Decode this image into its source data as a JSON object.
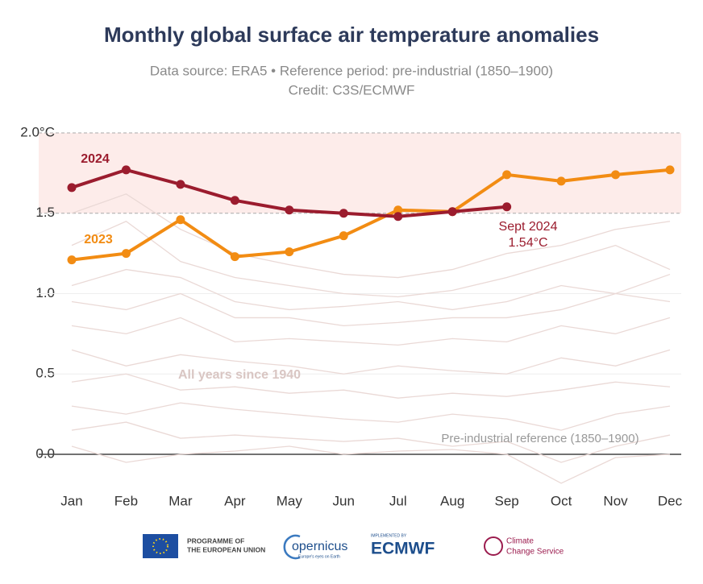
{
  "chart_data": {
    "type": "line",
    "title": "Monthly global surface air temperature anomalies",
    "subtitle": [
      "Data source: ERA5 • Reference period: pre-industrial (1850–1900)",
      "Credit: C3S/ECMWF"
    ],
    "categories": [
      "Jan",
      "Feb",
      "Mar",
      "Apr",
      "May",
      "Jun",
      "Jul",
      "Aug",
      "Sep",
      "Oct",
      "Nov",
      "Dec"
    ],
    "series": [
      {
        "name": "2024",
        "color": "#9b1c2e",
        "values": [
          1.66,
          1.77,
          1.68,
          1.58,
          1.52,
          1.5,
          1.48,
          1.51,
          1.54,
          null,
          null,
          null
        ]
      },
      {
        "name": "2023",
        "color": "#f28c13",
        "values": [
          1.21,
          1.25,
          1.46,
          1.23,
          1.26,
          1.36,
          1.52,
          1.51,
          1.74,
          1.7,
          1.74,
          1.77
        ]
      }
    ],
    "background_lines": {
      "label": "All years since 1940",
      "color": "#ead9d6",
      "values": [
        [
          1.3,
          1.45,
          1.2,
          1.1,
          1.05,
          1.0,
          0.98,
          1.02,
          1.1,
          1.2,
          1.3,
          1.15
        ],
        [
          1.05,
          1.15,
          1.1,
          0.95,
          0.9,
          0.92,
          0.95,
          0.9,
          0.95,
          1.05,
          1.0,
          1.12
        ],
        [
          0.95,
          0.9,
          1.0,
          0.85,
          0.85,
          0.8,
          0.82,
          0.85,
          0.85,
          0.9,
          1.0,
          0.95
        ],
        [
          0.8,
          0.75,
          0.85,
          0.7,
          0.72,
          0.7,
          0.68,
          0.72,
          0.7,
          0.8,
          0.75,
          0.85
        ],
        [
          0.65,
          0.55,
          0.62,
          0.58,
          0.55,
          0.5,
          0.55,
          0.52,
          0.5,
          0.6,
          0.55,
          0.65
        ],
        [
          0.45,
          0.5,
          0.4,
          0.42,
          0.38,
          0.4,
          0.35,
          0.38,
          0.36,
          0.4,
          0.45,
          0.42
        ],
        [
          0.3,
          0.25,
          0.32,
          0.28,
          0.25,
          0.22,
          0.2,
          0.25,
          0.22,
          0.15,
          0.25,
          0.3
        ],
        [
          0.15,
          0.2,
          0.1,
          0.12,
          0.1,
          0.08,
          0.1,
          0.05,
          0.08,
          -0.05,
          0.05,
          0.12
        ],
        [
          0.05,
          -0.05,
          0.0,
          0.02,
          0.05,
          0.0,
          0.02,
          0.03,
          0.0,
          -0.18,
          -0.02,
          0.0
        ],
        [
          1.5,
          1.62,
          1.4,
          1.25,
          1.18,
          1.12,
          1.1,
          1.15,
          1.25,
          1.3,
          1.4,
          1.45
        ]
      ]
    },
    "annotations": [
      "Sept 2024",
      "1.54°C",
      "Pre-industrial reference (1850–1900)"
    ],
    "ylim": [
      -0.2,
      2.0
    ],
    "yticks": [
      {
        "value": 0,
        "label": "0.0"
      },
      0.5,
      {
        "value": 1,
        "label": "1.0"
      },
      1.5,
      {
        "value": 2,
        "label": "2.0°C"
      }
    ],
    "shaded_band": [
      1.5,
      2.0
    ]
  },
  "footer": {
    "eu": [
      "PROGRAMME OF",
      "THE EUROPEAN UNION"
    ],
    "copernicus": "opernicus",
    "copernicus_sub": "Europe's eyes on Earth",
    "ecmwf_top": "IMPLEMENTED BY",
    "ecmwf": "ECMWF",
    "c3s": [
      "Climate",
      "Change Service"
    ]
  }
}
